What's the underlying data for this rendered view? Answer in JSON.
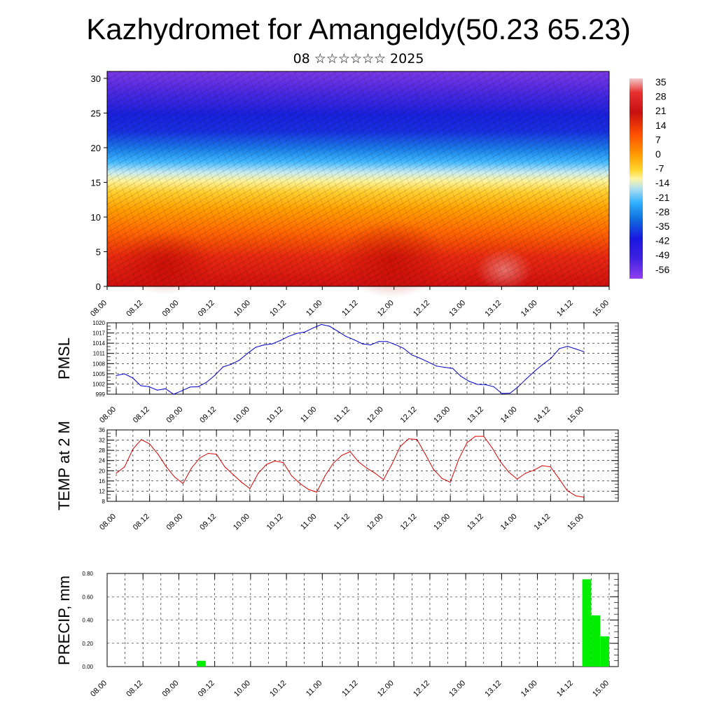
{
  "title": "Kazhydromet for Amangeldy(50.23 65.23)",
  "subtitle": "08 ☆☆☆☆☆☆ 2025",
  "chart_data": [
    {
      "type": "heatmap",
      "name": "temperature-wind-cross-section",
      "ylim": [
        0,
        31
      ],
      "yticks": [
        "0",
        "5",
        "10",
        "15",
        "20",
        "25",
        "30"
      ],
      "xticks": [
        "08.00",
        "08.12",
        "09.00",
        "09.12",
        "10.00",
        "10.12",
        "11.00",
        "11.12",
        "12.00",
        "12.12",
        "13.00",
        "13.12",
        "14.00",
        "14.12",
        "15.00"
      ],
      "colorbar_labels": [
        "35",
        "28",
        "21",
        "14",
        "7",
        "0",
        "-7",
        "-14",
        "-21",
        "-28",
        "-35",
        "-42",
        "-49",
        "-56"
      ],
      "colors": [
        "#f0c8c8",
        "#e83030",
        "#c81010",
        "#ff5000",
        "#ff9a00",
        "#ffd830",
        "#fff5a0",
        "#b0e0f0",
        "#30b0ff",
        "#1070e0",
        "#1818e0",
        "#4020e0",
        "#7030e0",
        "#9040f0"
      ]
    },
    {
      "type": "line",
      "ylabel": "PMSL",
      "ylim": [
        999,
        1020
      ],
      "yticks": [
        "999",
        "1002",
        "1005",
        "1008",
        "1011",
        "1014",
        "1017",
        "1020"
      ],
      "xticks": [
        "08.00",
        "08.12",
        "09.00",
        "09.12",
        "10.00",
        "10.12",
        "11.00",
        "11.12",
        "12.00",
        "12.12",
        "13.00",
        "13.12",
        "14.00",
        "14.12",
        "15.00"
      ],
      "color": "#0000cc",
      "series": [
        {
          "values": [
            1004.5,
            1005,
            1003.8,
            1001.5,
            1001.2,
            1000.2,
            1000.6,
            999,
            1000,
            1001.1,
            1001.2,
            1002.5,
            1004.5,
            1007,
            1007.8,
            1009,
            1011,
            1012.8,
            1013.5,
            1013.8,
            1014.8,
            1016,
            1016.9,
            1017.3,
            1018.5,
            1019.5,
            1019,
            1017.5,
            1016,
            1015,
            1013.8,
            1013.5,
            1014.5,
            1014.5,
            1013.6,
            1012.5,
            1010.6,
            1009.6,
            1008.5,
            1007.3,
            1006.9,
            1006.6,
            1004.3,
            1002.8,
            1001.9,
            1001.8,
            1001.2,
            999.2,
            999.3,
            1001.2,
            1003.6,
            1005.8,
            1007.8,
            1009.6,
            1012.4,
            1013.1,
            1012.3,
            1011.5
          ]
        }
      ]
    },
    {
      "type": "line",
      "ylabel": "TEMP at 2 M",
      "ylim": [
        8,
        36
      ],
      "yticks": [
        "8",
        "12",
        "16",
        "20",
        "24",
        "28",
        "32",
        "36"
      ],
      "xticks": [
        "08.00",
        "08.12",
        "09.00",
        "09.12",
        "10.00",
        "10.12",
        "11.00",
        "11.12",
        "12.00",
        "12.12",
        "13.00",
        "13.12",
        "14.00",
        "14.12",
        "15.00"
      ],
      "color": "#dd0000",
      "series": [
        {
          "values": [
            19,
            21.5,
            28.5,
            32.2,
            30.5,
            26.5,
            21.5,
            17.5,
            15,
            21,
            25,
            26.8,
            26.5,
            21.5,
            18.5,
            15.5,
            13,
            19,
            22.5,
            23.8,
            23.2,
            18,
            15,
            12.7,
            11.6,
            18,
            23,
            26,
            27.5,
            23.5,
            21,
            19,
            16.5,
            22.5,
            29.5,
            32.5,
            32.3,
            26.5,
            20.5,
            17,
            15.5,
            24.5,
            31,
            33.5,
            33.5,
            29,
            23.5,
            19.5,
            16.7,
            19,
            20.2,
            22,
            21.5,
            17,
            12.2,
            10.2,
            9.6
          ]
        }
      ]
    },
    {
      "type": "bar",
      "ylabel": "PRECIP, mm",
      "ylim": [
        0,
        0.8
      ],
      "yticks": [
        "0.00",
        "0.20",
        "0.40",
        "0.60",
        "0.80"
      ],
      "xticks": [
        "08.00",
        "08.12",
        "09.00",
        "09.12",
        "10.00",
        "10.12",
        "11.00",
        "11.12",
        "12.00",
        "12.12",
        "13.00",
        "13.12",
        "14.00",
        "14.12",
        "15.00"
      ],
      "color": "#00ee00",
      "bars": [
        {
          "start": "09.06",
          "end": "09.09",
          "value": 0.05
        },
        {
          "start": "14.15",
          "end": "14.18",
          "value": 0.75
        },
        {
          "start": "14.18",
          "end": "14.21",
          "value": 0.44
        },
        {
          "start": "14.21",
          "end": "15.00",
          "value": 0.26
        }
      ]
    }
  ]
}
